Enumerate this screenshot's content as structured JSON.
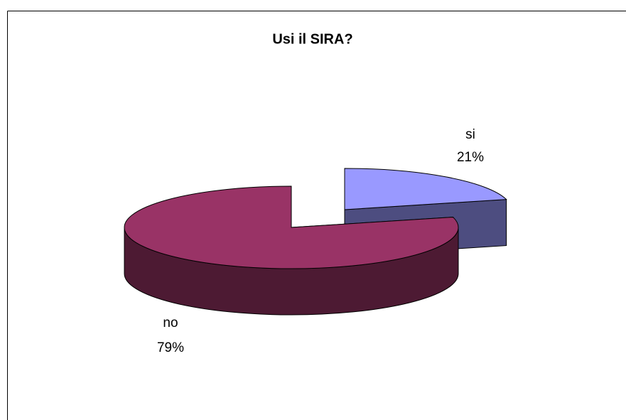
{
  "chart_data": {
    "type": "pie",
    "title": "Usi il SIRA?",
    "categories": [
      "si",
      "no"
    ],
    "values": [
      21,
      79
    ],
    "value_labels": [
      "21%",
      "79%"
    ],
    "colors": [
      "#9999ff",
      "#993366"
    ]
  }
}
